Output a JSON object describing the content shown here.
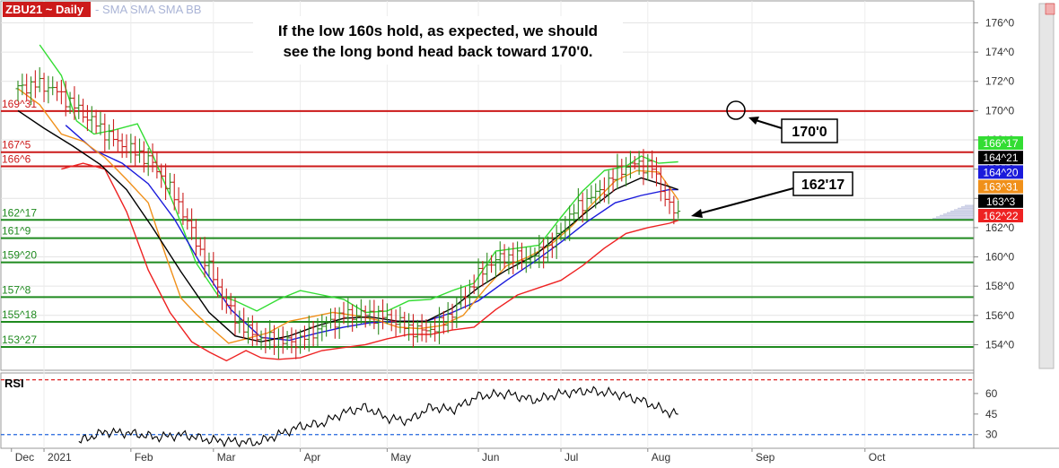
{
  "header": {
    "symbol": "ZBU21 ~ Daily",
    "studies": "-  SMA SMA SMA BB"
  },
  "annotations": {
    "headline_line1": "If the low 160s hold, as expected, we should",
    "headline_line2": "see the long bond head back toward 170'0.",
    "target_box": "170'0",
    "support_box": "162'17"
  },
  "rsi": {
    "label": "RSI",
    "ticks": [
      "60",
      "45",
      "30"
    ],
    "upper_level": 70,
    "lower_level": 30,
    "ylim": [
      20,
      75
    ]
  },
  "colors": {
    "price_bar_up": "#2e8b1e",
    "price_bar_down": "#cc2020",
    "bb_upper": "#33dd33",
    "bb_lower": "#ee2222",
    "sma_black": "#000000",
    "sma_blue": "#1a1adb",
    "sma_orange": "#f0901a",
    "resistance": "#cc1a1a",
    "support": "#1f8a1f"
  },
  "chart_data": {
    "type": "line",
    "ylim": [
      152.25,
      177.5
    ],
    "y_ticks": [
      "176^0",
      "174^0",
      "172^0",
      "170^0",
      "168^0",
      "166^0",
      "164^0",
      "162^0",
      "160^0",
      "158^0",
      "156^0",
      "154^0"
    ],
    "x_months": [
      "Dec",
      "2021",
      "Feb",
      "Mar",
      "Apr",
      "May",
      "Jun",
      "Jul",
      "Aug",
      "Sep",
      "Oct"
    ],
    "horizontal_levels": [
      {
        "label": "169^31",
        "value": 169.97,
        "color": "#cc1a1a"
      },
      {
        "label": "167^5",
        "value": 167.16,
        "color": "#cc1a1a"
      },
      {
        "label": "166^6",
        "value": 166.19,
        "color": "#cc1a1a"
      },
      {
        "label": "162^17",
        "value": 162.53,
        "color": "#1f8a1f"
      },
      {
        "label": "161^9",
        "value": 161.28,
        "color": "#1f8a1f"
      },
      {
        "label": "159^20",
        "value": 159.63,
        "color": "#1f8a1f"
      },
      {
        "label": "157^8",
        "value": 157.25,
        "color": "#1f8a1f"
      },
      {
        "label": "155^18",
        "value": 155.56,
        "color": "#1f8a1f"
      },
      {
        "label": "153^27",
        "value": 153.84,
        "color": "#1f8a1f"
      }
    ],
    "last_values": [
      {
        "label": "166^17",
        "color": "#33dd33"
      },
      {
        "label": "164^21",
        "color": "#000000"
      },
      {
        "label": "164^20",
        "color": "#1a1adb"
      },
      {
        "label": "163^31",
        "color": "#f0901a"
      },
      {
        "label": "163^3",
        "color": "#000000"
      },
      {
        "label": "162^22",
        "color": "#ee2222"
      }
    ],
    "price_path": [
      [
        0,
        171.5
      ],
      [
        8,
        171.8
      ],
      [
        15,
        171.6
      ],
      [
        22,
        170.8
      ],
      [
        30,
        169.8
      ],
      [
        38,
        168.8
      ],
      [
        45,
        167.9
      ],
      [
        52,
        167.3
      ],
      [
        60,
        166.7
      ],
      [
        67,
        165.3
      ],
      [
        75,
        163.4
      ],
      [
        82,
        161.0
      ],
      [
        90,
        158.6
      ],
      [
        97,
        156.4
      ],
      [
        105,
        155.0
      ],
      [
        112,
        154.4
      ],
      [
        120,
        154.3
      ],
      [
        127,
        154.1
      ],
      [
        135,
        154.8
      ],
      [
        142,
        155.4
      ],
      [
        150,
        156.0
      ],
      [
        157,
        156.1
      ],
      [
        165,
        156.0
      ],
      [
        172,
        155.8
      ],
      [
        180,
        155.1
      ],
      [
        187,
        154.9
      ],
      [
        195,
        155.4
      ],
      [
        202,
        156.6
      ],
      [
        210,
        158.3
      ],
      [
        217,
        159.6
      ],
      [
        225,
        160.0
      ],
      [
        232,
        159.9
      ],
      [
        240,
        160.2
      ],
      [
        247,
        161.0
      ],
      [
        255,
        163.0
      ],
      [
        262,
        163.9
      ],
      [
        270,
        164.7
      ],
      [
        277,
        166.0
      ],
      [
        285,
        166.4
      ],
      [
        292,
        166.1
      ],
      [
        300,
        163.4
      ],
      [
        304,
        162.9
      ]
    ],
    "sma_black": [
      [
        0,
        170.0
      ],
      [
        12,
        168.8
      ],
      [
        25,
        167.6
      ],
      [
        38,
        166.3
      ],
      [
        50,
        164.6
      ],
      [
        62,
        162.0
      ],
      [
        75,
        159.0
      ],
      [
        88,
        156.2
      ],
      [
        100,
        154.6
      ],
      [
        112,
        154.2
      ],
      [
        125,
        154.6
      ],
      [
        138,
        155.3
      ],
      [
        150,
        155.8
      ],
      [
        162,
        155.9
      ],
      [
        175,
        155.6
      ],
      [
        188,
        155.6
      ],
      [
        200,
        156.5
      ],
      [
        212,
        157.9
      ],
      [
        225,
        159.1
      ],
      [
        238,
        160.1
      ],
      [
        250,
        161.6
      ],
      [
        262,
        163.1
      ],
      [
        275,
        164.6
      ],
      [
        287,
        165.4
      ],
      [
        300,
        164.8
      ],
      [
        304,
        164.6
      ]
    ],
    "sma_blue": [
      [
        22,
        169.0
      ],
      [
        35,
        167.3
      ],
      [
        48,
        166.4
      ],
      [
        60,
        165.0
      ],
      [
        72,
        162.6
      ],
      [
        85,
        159.3
      ],
      [
        98,
        156.4
      ],
      [
        112,
        154.5
      ],
      [
        125,
        154.3
      ],
      [
        138,
        154.8
      ],
      [
        150,
        155.2
      ],
      [
        162,
        155.5
      ],
      [
        175,
        155.6
      ],
      [
        188,
        155.6
      ],
      [
        200,
        156.2
      ],
      [
        212,
        157.0
      ],
      [
        225,
        158.4
      ],
      [
        238,
        159.7
      ],
      [
        250,
        161.0
      ],
      [
        262,
        162.4
      ],
      [
        275,
        163.7
      ],
      [
        287,
        164.2
      ],
      [
        300,
        164.6
      ],
      [
        304,
        164.6
      ]
    ],
    "sma_orange": [
      [
        0,
        171.5
      ],
      [
        10,
        170.4
      ],
      [
        20,
        168.4
      ],
      [
        30,
        167.9
      ],
      [
        40,
        166.8
      ],
      [
        50,
        165.3
      ],
      [
        60,
        163.7
      ],
      [
        68,
        160.1
      ],
      [
        75,
        157.2
      ],
      [
        82,
        156.1
      ],
      [
        90,
        155.0
      ],
      [
        97,
        154.1
      ],
      [
        105,
        154.4
      ],
      [
        115,
        154.8
      ],
      [
        125,
        155.6
      ],
      [
        135,
        155.9
      ],
      [
        145,
        156.2
      ],
      [
        155,
        156.0
      ],
      [
        165,
        155.7
      ],
      [
        175,
        155.2
      ],
      [
        185,
        155.1
      ],
      [
        195,
        155.3
      ],
      [
        205,
        156.0
      ],
      [
        215,
        157.8
      ],
      [
        225,
        159.4
      ],
      [
        235,
        160.0
      ],
      [
        245,
        160.8
      ],
      [
        255,
        162.1
      ],
      [
        265,
        163.7
      ],
      [
        275,
        165.2
      ],
      [
        285,
        165.9
      ],
      [
        295,
        165.8
      ],
      [
        304,
        163.9
      ]
    ],
    "bb_upper": [
      [
        10,
        174.5
      ],
      [
        20,
        172.4
      ],
      [
        27,
        169.3
      ],
      [
        35,
        168.4
      ],
      [
        45,
        168.7
      ],
      [
        55,
        169.1
      ],
      [
        62,
        167.0
      ],
      [
        72,
        163.5
      ],
      [
        82,
        159.6
      ],
      [
        92,
        157.4
      ],
      [
        100,
        157.0
      ],
      [
        110,
        156.3
      ],
      [
        120,
        157.1
      ],
      [
        130,
        157.7
      ],
      [
        140,
        157.4
      ],
      [
        150,
        157.1
      ],
      [
        160,
        156.2
      ],
      [
        170,
        156.3
      ],
      [
        180,
        157.0
      ],
      [
        190,
        157.1
      ],
      [
        200,
        157.7
      ],
      [
        210,
        158.2
      ],
      [
        220,
        160.4
      ],
      [
        230,
        160.6
      ],
      [
        240,
        160.8
      ],
      [
        250,
        162.7
      ],
      [
        260,
        164.5
      ],
      [
        270,
        165.9
      ],
      [
        280,
        166.2
      ],
      [
        287,
        166.9
      ],
      [
        295,
        166.4
      ],
      [
        304,
        166.5
      ]
    ],
    "bb_lower": [
      [
        20,
        166.0
      ],
      [
        30,
        166.4
      ],
      [
        40,
        166.0
      ],
      [
        50,
        163.1
      ],
      [
        60,
        159.1
      ],
      [
        70,
        156.2
      ],
      [
        80,
        154.2
      ],
      [
        88,
        153.5
      ],
      [
        96,
        152.9
      ],
      [
        105,
        153.6
      ],
      [
        112,
        153.1
      ],
      [
        120,
        153.0
      ],
      [
        130,
        153.1
      ],
      [
        140,
        153.6
      ],
      [
        150,
        153.8
      ],
      [
        160,
        154.0
      ],
      [
        170,
        154.4
      ],
      [
        180,
        154.7
      ],
      [
        190,
        154.7
      ],
      [
        200,
        155.0
      ],
      [
        210,
        155.2
      ],
      [
        220,
        156.4
      ],
      [
        230,
        157.4
      ],
      [
        240,
        157.9
      ],
      [
        250,
        158.4
      ],
      [
        260,
        159.4
      ],
      [
        270,
        160.6
      ],
      [
        280,
        161.6
      ],
      [
        290,
        162.0
      ],
      [
        300,
        162.3
      ],
      [
        304,
        162.5
      ]
    ],
    "rsi_path": [
      [
        28,
        25
      ],
      [
        40,
        32
      ],
      [
        52,
        31
      ],
      [
        64,
        28
      ],
      [
        76,
        30
      ],
      [
        88,
        26
      ],
      [
        100,
        25
      ],
      [
        110,
        24
      ],
      [
        120,
        30
      ],
      [
        130,
        36
      ],
      [
        140,
        38
      ],
      [
        150,
        46
      ],
      [
        160,
        50
      ],
      [
        170,
        42
      ],
      [
        180,
        40
      ],
      [
        190,
        50
      ],
      [
        200,
        48
      ],
      [
        212,
        58
      ],
      [
        225,
        60
      ],
      [
        238,
        55
      ],
      [
        250,
        60
      ],
      [
        262,
        62
      ],
      [
        275,
        60
      ],
      [
        287,
        55
      ],
      [
        300,
        46
      ],
      [
        304,
        45
      ]
    ]
  }
}
